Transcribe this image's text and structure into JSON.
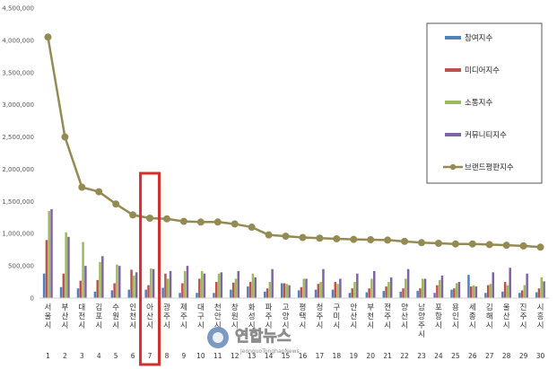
{
  "chart_data": {
    "type": "bar",
    "title": "",
    "xlabel": "",
    "ylabel": "",
    "ylim": [
      0,
      4500000
    ],
    "yticks": [
      "0",
      "500,000",
      "1,000,000",
      "1,500,000",
      "2,000,000",
      "2,500,000",
      "3,000,000",
      "3,500,000",
      "4,000,000",
      "4,500,000"
    ],
    "grid": false,
    "legend_position": "top-right",
    "categories": [
      "서울시",
      "부산시",
      "대전시",
      "김포시",
      "수원시",
      "인천시",
      "아산시",
      "광주시",
      "제주시",
      "대구시",
      "천안시",
      "창원시",
      "화성시",
      "파주시",
      "고양시",
      "평택시",
      "청주시",
      "구미시",
      "안산시",
      "부천시",
      "전주시",
      "양산시",
      "남양주시",
      "포항시",
      "용인시",
      "세종시",
      "김해시",
      "울산시",
      "진주시",
      "시흥시"
    ],
    "index_labels": [
      "1",
      "2",
      "3",
      "4",
      "5",
      "6",
      "7",
      "8",
      "9",
      "10",
      "11",
      "12",
      "13",
      "14",
      "15",
      "16",
      "17",
      "18",
      "19",
      "20",
      "21",
      "22",
      "23",
      "24",
      "25",
      "26",
      "27",
      "28",
      "29",
      "30"
    ],
    "highlight_index": 6,
    "highlight_color": "#d32f2f",
    "series": [
      {
        "name": "참여지수",
        "kind": "bar",
        "color": "#4f81bd",
        "values": [
          380000,
          170000,
          150000,
          100000,
          120000,
          130000,
          130000,
          160000,
          80000,
          80000,
          80000,
          130000,
          180000,
          100000,
          230000,
          120000,
          130000,
          130000,
          80000,
          90000,
          110000,
          100000,
          110000,
          80000,
          130000,
          360000,
          80000,
          100000,
          80000,
          90000
        ]
      },
      {
        "name": "미디어지수",
        "kind": "bar",
        "color": "#c0504d",
        "values": [
          900000,
          380000,
          270000,
          280000,
          230000,
          440000,
          200000,
          380000,
          230000,
          300000,
          250000,
          240000,
          250000,
          150000,
          230000,
          170000,
          220000,
          250000,
          150000,
          150000,
          180000,
          150000,
          150000,
          200000,
          150000,
          180000,
          200000,
          250000,
          120000,
          150000
        ]
      },
      {
        "name": "소통지수",
        "kind": "bar",
        "color": "#9bbb59",
        "values": [
          1350000,
          1020000,
          870000,
          560000,
          520000,
          350000,
          460000,
          300000,
          420000,
          420000,
          380000,
          300000,
          380000,
          250000,
          220000,
          300000,
          250000,
          220000,
          250000,
          300000,
          250000,
          300000,
          300000,
          280000,
          230000,
          200000,
          220000,
          200000,
          200000,
          320000
        ]
      },
      {
        "name": "커뮤니티지수",
        "kind": "bar",
        "color": "#8064a2",
        "values": [
          1380000,
          950000,
          500000,
          650000,
          500000,
          400000,
          450000,
          420000,
          500000,
          380000,
          400000,
          420000,
          320000,
          450000,
          200000,
          300000,
          450000,
          300000,
          380000,
          420000,
          320000,
          450000,
          300000,
          350000,
          250000,
          180000,
          400000,
          470000,
          380000,
          260000
        ]
      },
      {
        "name": "브랜드평판지수",
        "kind": "line",
        "color": "#948a54",
        "values": [
          4050000,
          2500000,
          1720000,
          1650000,
          1460000,
          1290000,
          1240000,
          1230000,
          1190000,
          1180000,
          1180000,
          1150000,
          1100000,
          980000,
          960000,
          940000,
          930000,
          920000,
          910000,
          905000,
          900000,
          880000,
          860000,
          850000,
          840000,
          840000,
          830000,
          820000,
          810000,
          790000
        ]
      }
    ]
  },
  "watermark": {
    "main": "연합뉴스",
    "sub": "JeonguoTonghapNews"
  }
}
